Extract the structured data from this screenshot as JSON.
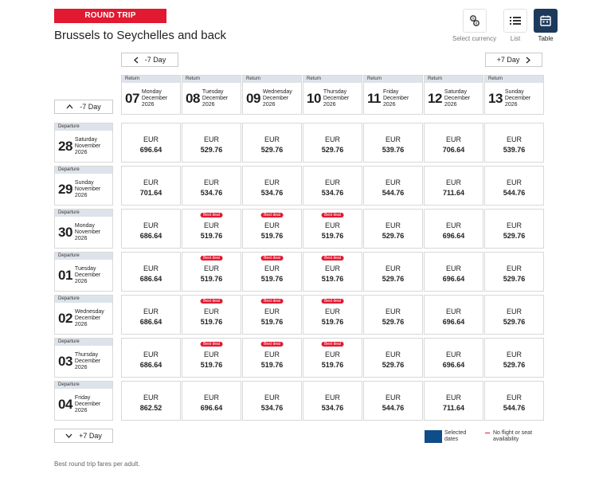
{
  "trip_badge": "ROUND TRIP",
  "route_title": "Brussels to Seychelles and back",
  "view_options": [
    {
      "label": "Select currency",
      "icon": "currency-icon",
      "active": false
    },
    {
      "label": "List",
      "icon": "list-icon",
      "active": false
    },
    {
      "label": "Table",
      "icon": "calendar-icon",
      "active": true
    }
  ],
  "nav": {
    "return_prev": "-7 Day",
    "return_next": "+7 Day",
    "departure_prev": "-7 Day",
    "departure_next": "+7 Day"
  },
  "return_label": "Return",
  "departure_label": "Departure",
  "return_dates": [
    {
      "day": "07",
      "weekday": "Monday",
      "month": "December",
      "year": "2026"
    },
    {
      "day": "08",
      "weekday": "Tuesday",
      "month": "December",
      "year": "2026"
    },
    {
      "day": "09",
      "weekday": "Wednesday",
      "month": "December",
      "year": "2026"
    },
    {
      "day": "10",
      "weekday": "Thursday",
      "month": "December",
      "year": "2026"
    },
    {
      "day": "11",
      "weekday": "Friday",
      "month": "December",
      "year": "2026"
    },
    {
      "day": "12",
      "weekday": "Saturday",
      "month": "December",
      "year": "2026"
    },
    {
      "day": "13",
      "weekday": "Sunday",
      "month": "December",
      "year": "2026"
    }
  ],
  "departure_dates": [
    {
      "day": "28",
      "weekday": "Saturday",
      "month": "November",
      "year": "2026"
    },
    {
      "day": "29",
      "weekday": "Sunday",
      "month": "November",
      "year": "2026"
    },
    {
      "day": "30",
      "weekday": "Monday",
      "month": "November",
      "year": "2026"
    },
    {
      "day": "01",
      "weekday": "Tuesday",
      "month": "December",
      "year": "2026"
    },
    {
      "day": "02",
      "weekday": "Wednesday",
      "month": "December",
      "year": "2026"
    },
    {
      "day": "03",
      "weekday": "Thursday",
      "month": "December",
      "year": "2026"
    },
    {
      "day": "04",
      "weekday": "Friday",
      "month": "December",
      "year": "2026"
    }
  ],
  "currency": "EUR",
  "best_deal_label": "Best deal",
  "fares": [
    [
      "696.64",
      "529.76",
      "529.76",
      "529.76",
      "539.76",
      "706.64",
      "539.76"
    ],
    [
      "701.64",
      "534.76",
      "534.76",
      "534.76",
      "544.76",
      "711.64",
      "544.76"
    ],
    [
      "686.64",
      "519.76",
      "519.76",
      "519.76",
      "529.76",
      "696.64",
      "529.76"
    ],
    [
      "686.64",
      "519.76",
      "519.76",
      "519.76",
      "529.76",
      "696.64",
      "529.76"
    ],
    [
      "686.64",
      "519.76",
      "519.76",
      "519.76",
      "529.76",
      "696.64",
      "529.76"
    ],
    [
      "686.64",
      "519.76",
      "519.76",
      "519.76",
      "529.76",
      "696.64",
      "529.76"
    ],
    [
      "862.52",
      "696.64",
      "534.76",
      "534.76",
      "544.76",
      "711.64",
      "544.76"
    ]
  ],
  "best_deals": [
    [
      false,
      false,
      false,
      false,
      false,
      false,
      false
    ],
    [
      false,
      false,
      false,
      false,
      false,
      false,
      false
    ],
    [
      false,
      true,
      true,
      true,
      false,
      false,
      false
    ],
    [
      false,
      true,
      true,
      true,
      false,
      false,
      false
    ],
    [
      false,
      true,
      true,
      true,
      false,
      false,
      false
    ],
    [
      false,
      true,
      true,
      true,
      false,
      false,
      false
    ],
    [
      false,
      false,
      false,
      false,
      false,
      false,
      false
    ]
  ],
  "legend": {
    "selected": "Selected dates",
    "no_flight": "No flight or seat availability"
  },
  "colors": {
    "accent_red": "#e11931",
    "selected_blue": "#0f4c8a",
    "header_strip": "#dde3ea"
  },
  "footnote": "Best round trip fares per adult."
}
